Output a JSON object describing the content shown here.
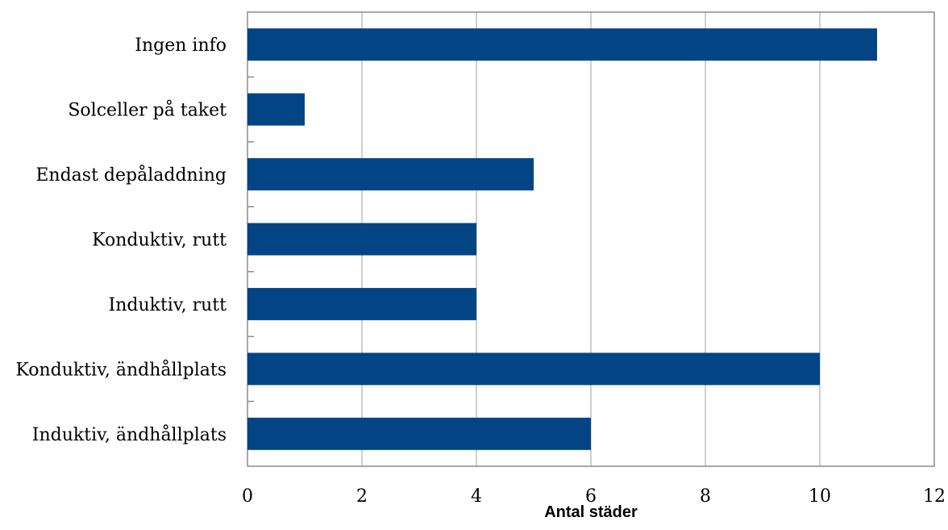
{
  "chart_data": {
    "type": "bar",
    "orientation": "horizontal",
    "categories": [
      "Ingen info",
      "Solceller på taket",
      "Endast depåladdning",
      "Konduktiv, rutt",
      "Induktiv, rutt",
      "Konduktiv, ändhållplats",
      "Induktiv, ändhållplats"
    ],
    "values": [
      11,
      1,
      5,
      4,
      4,
      10,
      6
    ],
    "xlabel": "Antal städer",
    "ylabel": "",
    "xlim": [
      0,
      12
    ],
    "xticks": [
      "0",
      "2",
      "4",
      "6",
      "8",
      "10",
      "12"
    ],
    "grid": "vertical",
    "bar_color": "#034584"
  }
}
